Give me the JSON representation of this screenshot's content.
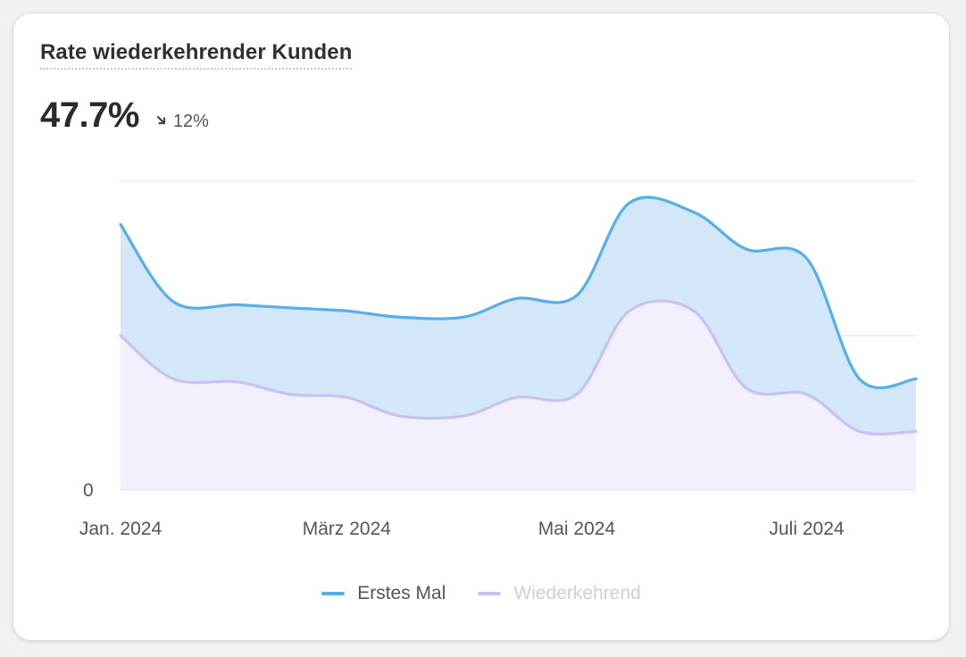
{
  "card": {
    "title": "Rate wiederkehrender Kunden",
    "value": "47.7%",
    "change": "12%",
    "change_icon": "arrow-down-right-icon"
  },
  "colors": {
    "first": "#5aaee8",
    "first_fill": "#d3e7f8",
    "returning": "#c8c1f2",
    "returning_fill": "#f3f0fd",
    "grid": "#e6e6e6",
    "legend_first_text": "#555555",
    "legend_returning_text": "#cfcfcf"
  },
  "chart_data": {
    "type": "area",
    "x": [
      "2024-01-01",
      "2024-01-15",
      "2024-02-01",
      "2024-02-15",
      "2024-03-01",
      "2024-03-15",
      "2024-04-01",
      "2024-04-15",
      "2024-05-01",
      "2024-05-15",
      "2024-06-01",
      "2024-06-15",
      "2024-07-01",
      "2024-07-15",
      "2024-07-30"
    ],
    "y_ticks": [
      {
        "value": 0,
        "label": "0"
      }
    ],
    "x_ticks": [
      {
        "x": "2024-01-01",
        "label": "Jan. 2024"
      },
      {
        "x": "2024-03-01",
        "label": "März 2024"
      },
      {
        "x": "2024-05-01",
        "label": "Mai 2024"
      },
      {
        "x": "2024-07-01",
        "label": "Juli 2024"
      }
    ],
    "ylim": [
      0,
      100
    ],
    "grid": true,
    "legend_position": "bottom",
    "series": [
      {
        "name": "Erstes Mal",
        "values": [
          86,
          61,
          60,
          59,
          58,
          56,
          56,
          62,
          63,
          93,
          90,
          78,
          75,
          36,
          36
        ]
      },
      {
        "name": "Wiederkehrend",
        "values": [
          50,
          36,
          35,
          31,
          30,
          24,
          24,
          30,
          31,
          58,
          58,
          33,
          31,
          19,
          19
        ]
      }
    ]
  }
}
